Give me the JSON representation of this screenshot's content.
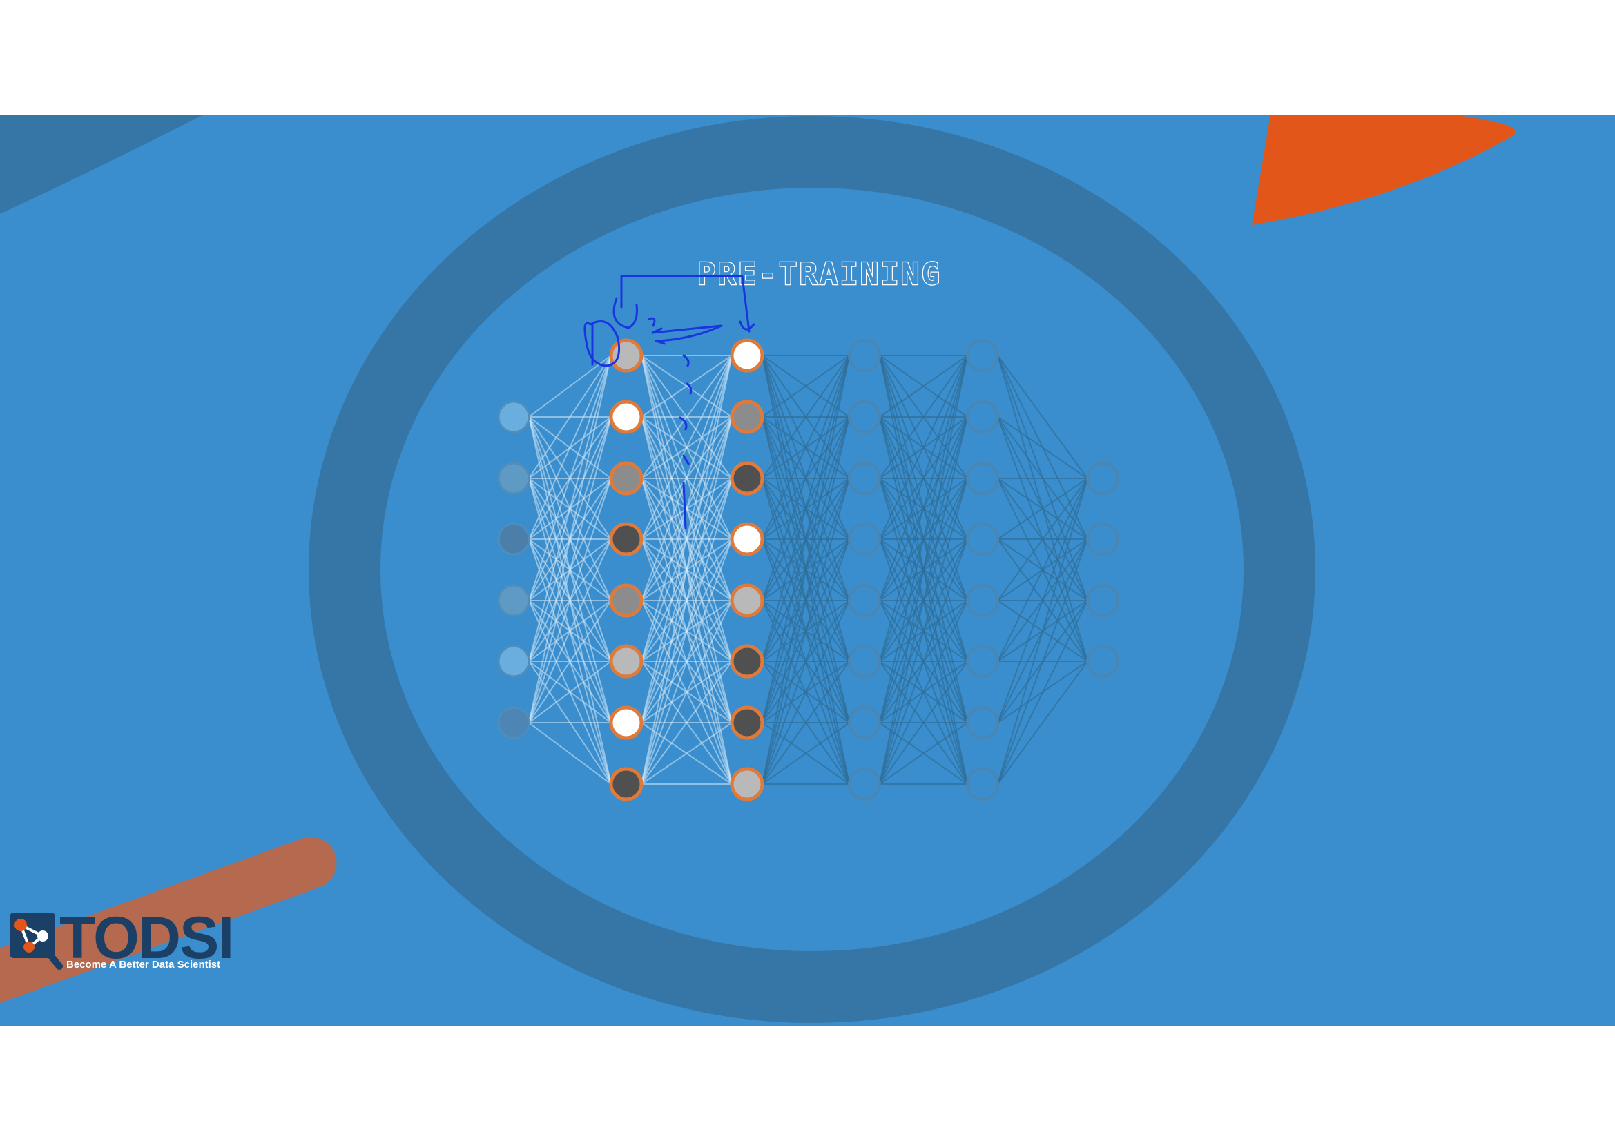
{
  "title": "PRE-TRAINING",
  "logo": {
    "name": "TODSI",
    "tagline": "Become A Better Data Scientist"
  },
  "colors": {
    "background_white": "#ffffff",
    "slide_blue": "#3a8ecd",
    "ring_blue": "#3576a6",
    "accent_orange": "#e2561a",
    "stripe_orange": "#b56a50",
    "node_ring_orange": "#e07a3a",
    "ink_blue": "#1a35e0",
    "logo_navy": "#1c3f66"
  },
  "network": {
    "layers": [
      {
        "name": "input-layer",
        "nodes": [
          "#6aaee0",
          "#5f9ac5",
          "#4b7ea8",
          "#5f9ac5",
          "#6aaee0",
          "#4d86b4"
        ],
        "highlighted": false
      },
      {
        "name": "hidden-layer-1",
        "nodes": [
          "#b9b9b9",
          "#ffffff",
          "#8c8c8c",
          "#505050",
          "#8c8c8c",
          "#b9b9b9",
          "#ffffff",
          "#505050"
        ],
        "highlighted": true
      },
      {
        "name": "hidden-layer-2",
        "nodes": [
          "#ffffff",
          "#8c8c8c",
          "#505050",
          "#ffffff",
          "#b9b9b9",
          "#505050",
          "#505050",
          "#b9b9b9"
        ],
        "highlighted": true
      },
      {
        "name": "hidden-layer-3",
        "nodes": [
          "",
          "",
          "",
          "",
          "",
          "",
          "",
          ""
        ],
        "highlighted": false
      },
      {
        "name": "hidden-layer-4",
        "nodes": [
          "",
          "",
          "",
          "",
          "",
          "",
          "",
          ""
        ],
        "highlighted": false
      },
      {
        "name": "output-layer",
        "nodes": [
          "",
          "",
          "",
          ""
        ],
        "highlighted": false
      }
    ]
  }
}
